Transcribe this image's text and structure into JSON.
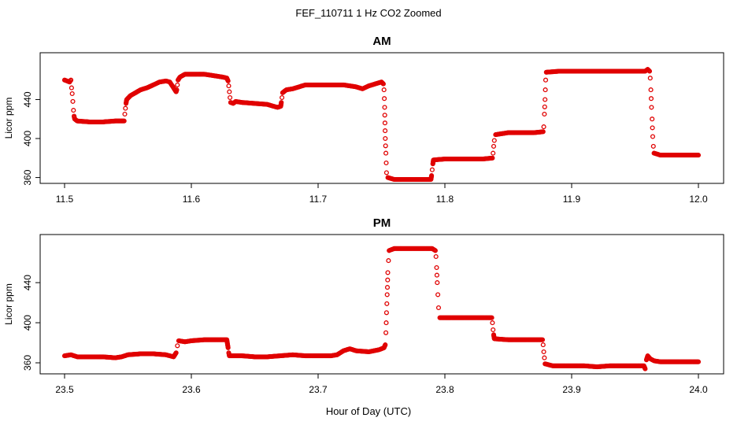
{
  "page_title": "FEF_110711  1 Hz CO2 Zoomed",
  "x_axis_label": "Hour of Day (UTC)",
  "marker_color": "#e00000",
  "chart_data": [
    {
      "type": "scatter",
      "title": "AM",
      "ylabel": "Licor ppm",
      "xlim": [
        11.5,
        12.0
      ],
      "ylim": [
        354,
        488
      ],
      "x_ticks": [
        11.5,
        11.6,
        11.7,
        11.8,
        11.9,
        12.0
      ],
      "x_tick_labels": [
        "11.5",
        "11.6",
        "11.7",
        "11.8",
        "11.9",
        "12.0"
      ],
      "y_ticks": [
        360,
        400,
        440
      ],
      "y_tick_labels": [
        "360",
        "400",
        "440"
      ],
      "grid": false,
      "series": [
        {
          "points": [
            [
              11.5,
              460
            ],
            [
              11.502,
              459
            ],
            [
              11.504,
              458
            ],
            [
              11.505,
              460
            ],
            [
              11.5055,
              452
            ],
            [
              11.506,
              446
            ],
            [
              11.5065,
              438
            ],
            [
              11.507,
              429
            ],
            [
              11.5075,
              423
            ],
            [
              11.508,
              420
            ],
            [
              11.51,
              418
            ],
            [
              11.52,
              417
            ],
            [
              11.53,
              417
            ],
            [
              11.54,
              418
            ],
            [
              11.547,
              418
            ],
            [
              11.5475,
              425
            ],
            [
              11.548,
              431
            ],
            [
              11.5485,
              436
            ],
            [
              11.549,
              440
            ],
            [
              11.552,
              444
            ],
            [
              11.556,
              447
            ],
            [
              11.56,
              450
            ],
            [
              11.565,
              452
            ],
            [
              11.57,
              455
            ],
            [
              11.575,
              458
            ],
            [
              11.58,
              459
            ],
            [
              11.583,
              458
            ],
            [
              11.586,
              452
            ],
            [
              11.588,
              448
            ],
            [
              11.5885,
              450
            ],
            [
              11.589,
              455
            ],
            [
              11.5895,
              460
            ],
            [
              11.591,
              463
            ],
            [
              11.595,
              466
            ],
            [
              11.6,
              466
            ],
            [
              11.605,
              466
            ],
            [
              11.61,
              466
            ],
            [
              11.615,
              465
            ],
            [
              11.62,
              464
            ],
            [
              11.625,
              463
            ],
            [
              11.628,
              462
            ],
            [
              11.629,
              459
            ],
            [
              11.6295,
              454
            ],
            [
              11.63,
              448
            ],
            [
              11.6305,
              442
            ],
            [
              11.631,
              437
            ],
            [
              11.633,
              436
            ],
            [
              11.635,
              438
            ],
            [
              11.64,
              437
            ],
            [
              11.65,
              436
            ],
            [
              11.66,
              435
            ],
            [
              11.665,
              433
            ],
            [
              11.668,
              432
            ],
            [
              11.6705,
              433
            ],
            [
              11.671,
              437
            ],
            [
              11.6715,
              442
            ],
            [
              11.672,
              447
            ],
            [
              11.675,
              450
            ],
            [
              11.68,
              451
            ],
            [
              11.685,
              453
            ],
            [
              11.69,
              455
            ],
            [
              11.7,
              455
            ],
            [
              11.71,
              455
            ],
            [
              11.72,
              455
            ],
            [
              11.73,
              453
            ],
            [
              11.735,
              451
            ],
            [
              11.74,
              454
            ],
            [
              11.745,
              456
            ],
            [
              11.75,
              458
            ],
            [
              11.7515,
              456
            ],
            [
              11.752,
              450
            ],
            [
              11.7525,
              432
            ],
            [
              11.753,
              400
            ],
            [
              11.7535,
              385
            ],
            [
              11.754,
              365
            ],
            [
              11.755,
              360
            ],
            [
              11.76,
              358
            ],
            [
              11.77,
              358
            ],
            [
              11.78,
              358
            ],
            [
              11.789,
              358
            ],
            [
              11.7895,
              362
            ],
            [
              11.79,
              368
            ],
            [
              11.7905,
              374
            ],
            [
              11.791,
              378
            ],
            [
              11.8,
              379
            ],
            [
              11.81,
              379
            ],
            [
              11.82,
              379
            ],
            [
              11.83,
              379
            ],
            [
              11.8375,
              380
            ],
            [
              11.838,
              385
            ],
            [
              11.8385,
              392
            ],
            [
              11.839,
              398
            ],
            [
              11.84,
              404
            ],
            [
              11.85,
              406
            ],
            [
              11.86,
              406
            ],
            [
              11.87,
              406
            ],
            [
              11.8775,
              407
            ],
            [
              11.878,
              412
            ],
            [
              11.8785,
              425
            ],
            [
              11.879,
              440
            ],
            [
              11.8795,
              460
            ],
            [
              11.88,
              468
            ],
            [
              11.89,
              469
            ],
            [
              11.9,
              469
            ],
            [
              11.91,
              469
            ],
            [
              11.92,
              469
            ],
            [
              11.93,
              469
            ],
            [
              11.94,
              469
            ],
            [
              11.95,
              469
            ],
            [
              11.958,
              469
            ],
            [
              11.96,
              471
            ],
            [
              11.9615,
              469
            ],
            [
              11.962,
              462
            ],
            [
              11.9625,
              450
            ],
            [
              11.963,
              432
            ],
            [
              11.9635,
              420
            ],
            [
              11.964,
              402
            ],
            [
              11.9645,
              392
            ],
            [
              11.965,
              385
            ],
            [
              11.97,
              383
            ],
            [
              11.98,
              383
            ],
            [
              11.99,
              383
            ],
            [
              12.0,
              383
            ]
          ]
        }
      ]
    },
    {
      "type": "scatter",
      "title": "PM",
      "ylabel": "Licor ppm",
      "xlim": [
        23.5,
        24.0
      ],
      "ylim": [
        349,
        488
      ],
      "x_ticks": [
        23.5,
        23.6,
        23.7,
        23.8,
        23.9,
        24.0
      ],
      "x_tick_labels": [
        "23.5",
        "23.6",
        "23.7",
        "23.8",
        "23.9",
        "24.0"
      ],
      "y_ticks": [
        360,
        400,
        440
      ],
      "y_tick_labels": [
        "360",
        "400",
        "440"
      ],
      "grid": false,
      "series": [
        {
          "points": [
            [
              23.5,
              367
            ],
            [
              23.505,
              368
            ],
            [
              23.51,
              366
            ],
            [
              23.52,
              366
            ],
            [
              23.53,
              366
            ],
            [
              23.54,
              365
            ],
            [
              23.545,
              366
            ],
            [
              23.55,
              368
            ],
            [
              23.56,
              369
            ],
            [
              23.57,
              369
            ],
            [
              23.58,
              368
            ],
            [
              23.586,
              366
            ],
            [
              23.588,
              370
            ],
            [
              23.589,
              377
            ],
            [
              23.59,
              382
            ],
            [
              23.595,
              381
            ],
            [
              23.6,
              382
            ],
            [
              23.61,
              383
            ],
            [
              23.62,
              383
            ],
            [
              23.628,
              383
            ],
            [
              23.6285,
              379
            ],
            [
              23.629,
              375
            ],
            [
              23.6295,
              370
            ],
            [
              23.63,
              367
            ],
            [
              23.64,
              367
            ],
            [
              23.65,
              366
            ],
            [
              23.66,
              366
            ],
            [
              23.67,
              367
            ],
            [
              23.68,
              368
            ],
            [
              23.69,
              367
            ],
            [
              23.7,
              367
            ],
            [
              23.71,
              367
            ],
            [
              23.715,
              368
            ],
            [
              23.72,
              372
            ],
            [
              23.725,
              374
            ],
            [
              23.73,
              372
            ],
            [
              23.74,
              371
            ],
            [
              23.748,
              373
            ],
            [
              23.752,
              375
            ],
            [
              23.753,
              378
            ],
            [
              23.7535,
              390
            ],
            [
              23.754,
              410
            ],
            [
              23.7545,
              428
            ],
            [
              23.755,
              450
            ],
            [
              23.7555,
              462
            ],
            [
              23.756,
              472
            ],
            [
              23.76,
              474
            ],
            [
              23.77,
              474
            ],
            [
              23.78,
              474
            ],
            [
              23.79,
              474
            ],
            [
              23.7925,
              472
            ],
            [
              23.793,
              466
            ],
            [
              23.7935,
              455
            ],
            [
              23.794,
              440
            ],
            [
              23.7945,
              428
            ],
            [
              23.795,
              415
            ],
            [
              23.796,
              405
            ],
            [
              23.8,
              405
            ],
            [
              23.81,
              405
            ],
            [
              23.82,
              405
            ],
            [
              23.83,
              405
            ],
            [
              23.837,
              405
            ],
            [
              23.8375,
              400
            ],
            [
              23.838,
              393
            ],
            [
              23.8385,
              388
            ],
            [
              23.839,
              384
            ],
            [
              23.85,
              383
            ],
            [
              23.86,
              383
            ],
            [
              23.87,
              383
            ],
            [
              23.877,
              383
            ],
            [
              23.8775,
              378
            ],
            [
              23.878,
              371
            ],
            [
              23.8785,
              365
            ],
            [
              23.879,
              359
            ],
            [
              23.885,
              357
            ],
            [
              23.89,
              357
            ],
            [
              23.9,
              357
            ],
            [
              23.91,
              357
            ],
            [
              23.92,
              356
            ],
            [
              23.93,
              357
            ],
            [
              23.94,
              357
            ],
            [
              23.95,
              357
            ],
            [
              23.957,
              357
            ],
            [
              23.958,
              354
            ],
            [
              23.959,
              363
            ],
            [
              23.96,
              367
            ],
            [
              23.962,
              364
            ],
            [
              23.965,
              362
            ],
            [
              23.97,
              361
            ],
            [
              23.98,
              361
            ],
            [
              23.99,
              361
            ],
            [
              24.0,
              361
            ]
          ]
        }
      ]
    }
  ]
}
